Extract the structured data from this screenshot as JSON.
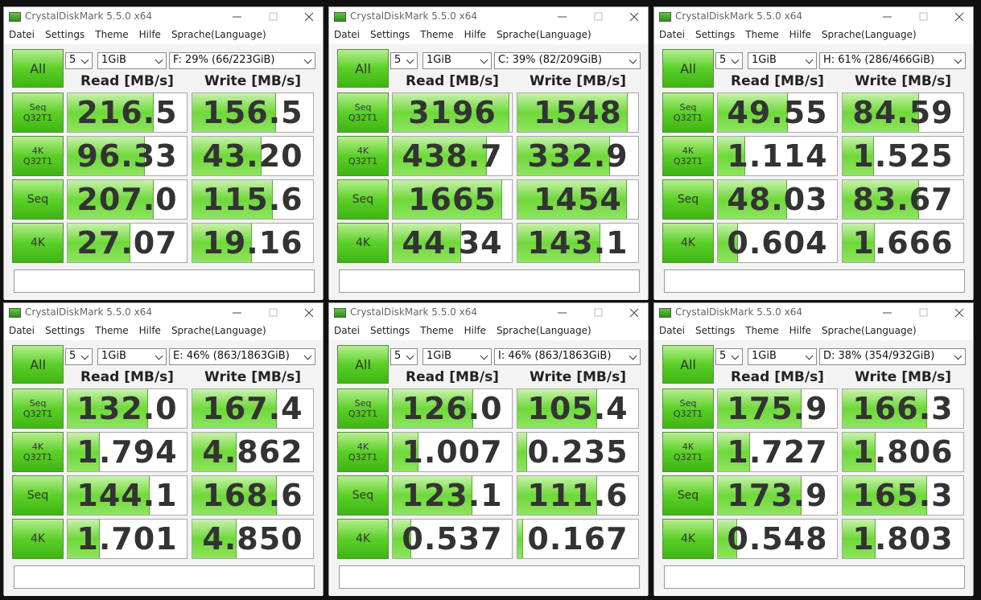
{
  "windows": [
    {
      "title": "CrystalDiskMark 5.5.0 x64",
      "menu": [
        "Datei",
        "Settings",
        "Theme",
        "Hilfe",
        "Sprache(Language)"
      ],
      "count": "5",
      "size": "1GiB",
      "drive": "F: 29% (66/223GiB)",
      "all": "All",
      "headers": [
        "Read [MB/s]",
        "Write [MB/s]"
      ],
      "rows": [
        {
          "label": [
            "Seq",
            "Q32T1"
          ],
          "read": "216.5",
          "write": "156.5"
        },
        {
          "label": [
            "4K",
            "Q32T1"
          ],
          "read": "96.33",
          "write": "43.20"
        },
        {
          "label": [
            "Seq"
          ],
          "read": "207.0",
          "write": "115.6"
        },
        {
          "label": [
            "4K"
          ],
          "read": "27.07",
          "write": "19.16"
        }
      ]
    },
    {
      "title": "CrystalDiskMark 5.5.0 x64",
      "menu": [
        "Datei",
        "Settings",
        "Theme",
        "Hilfe",
        "Sprache(Language)"
      ],
      "count": "5",
      "size": "1GiB",
      "drive": "C: 39% (82/209GiB)",
      "all": "All",
      "headers": [
        "Read [MB/s]",
        "Write [MB/s]"
      ],
      "rows": [
        {
          "label": [
            "Seq",
            "Q32T1"
          ],
          "read": "3196",
          "write": "1548"
        },
        {
          "label": [
            "4K",
            "Q32T1"
          ],
          "read": "438.7",
          "write": "332.9"
        },
        {
          "label": [
            "Seq"
          ],
          "read": "1665",
          "write": "1454"
        },
        {
          "label": [
            "4K"
          ],
          "read": "44.34",
          "write": "143.1"
        }
      ]
    },
    {
      "title": "CrystalDiskMark 5.5.0 x64",
      "menu": [
        "Datei",
        "Settings",
        "Theme",
        "Hilfe",
        "Sprache(Language)"
      ],
      "count": "5",
      "size": "1GiB",
      "drive": "H: 61% (286/466GiB)",
      "all": "All",
      "headers": [
        "Read [MB/s]",
        "Write [MB/s]"
      ],
      "rows": [
        {
          "label": [
            "Seq",
            "Q32T1"
          ],
          "read": "49.55",
          "write": "84.59"
        },
        {
          "label": [
            "4K",
            "Q32T1"
          ],
          "read": "1.114",
          "write": "1.525"
        },
        {
          "label": [
            "Seq"
          ],
          "read": "48.03",
          "write": "83.67"
        },
        {
          "label": [
            "4K"
          ],
          "read": "0.604",
          "write": "1.666"
        }
      ]
    },
    {
      "title": "CrystalDiskMark 5.5.0 x64",
      "menu": [
        "Datei",
        "Settings",
        "Theme",
        "Hilfe",
        "Sprache(Language)"
      ],
      "count": "5",
      "size": "1GiB",
      "drive": "E: 46% (863/1863GiB)",
      "all": "All",
      "headers": [
        "Read [MB/s]",
        "Write [MB/s]"
      ],
      "rows": [
        {
          "label": [
            "Seq",
            "Q32T1"
          ],
          "read": "132.0",
          "write": "167.4"
        },
        {
          "label": [
            "4K",
            "Q32T1"
          ],
          "read": "1.794",
          "write": "4.862"
        },
        {
          "label": [
            "Seq"
          ],
          "read": "144.1",
          "write": "168.6"
        },
        {
          "label": [
            "4K"
          ],
          "read": "1.701",
          "write": "4.850"
        }
      ]
    },
    {
      "title": "CrystalDiskMark 5.5.0 x64",
      "menu": [
        "Datei",
        "Settings",
        "Theme",
        "Hilfe",
        "Sprache(Language)"
      ],
      "count": "5",
      "size": "1GiB",
      "drive": "I: 46% (863/1863GiB)",
      "all": "All",
      "headers": [
        "Read [MB/s]",
        "Write [MB/s]"
      ],
      "rows": [
        {
          "label": [
            "Seq",
            "Q32T1"
          ],
          "read": "126.0",
          "write": "105.4"
        },
        {
          "label": [
            "4K",
            "Q32T1"
          ],
          "read": "1.007",
          "write": "0.235"
        },
        {
          "label": [
            "Seq"
          ],
          "read": "123.1",
          "write": "111.6"
        },
        {
          "label": [
            "4K"
          ],
          "read": "0.537",
          "write": "0.167"
        }
      ]
    },
    {
      "title": "CrystalDiskMark 5.5.0 x64",
      "menu": [
        "Datei",
        "Settings",
        "Theme",
        "Hilfe",
        "Sprache(Language)"
      ],
      "count": "5",
      "size": "1GiB",
      "drive": "D: 38% (354/932GiB)",
      "all": "All",
      "headers": [
        "Read [MB/s]",
        "Write [MB/s]"
      ],
      "rows": [
        {
          "label": [
            "Seq",
            "Q32T1"
          ],
          "read": "175.9",
          "write": "166.3"
        },
        {
          "label": [
            "4K",
            "Q32T1"
          ],
          "read": "1.727",
          "write": "1.806"
        },
        {
          "label": [
            "Seq"
          ],
          "read": "173.9",
          "write": "165.3"
        },
        {
          "label": [
            "4K"
          ],
          "read": "0.548",
          "write": "1.803"
        }
      ]
    }
  ]
}
